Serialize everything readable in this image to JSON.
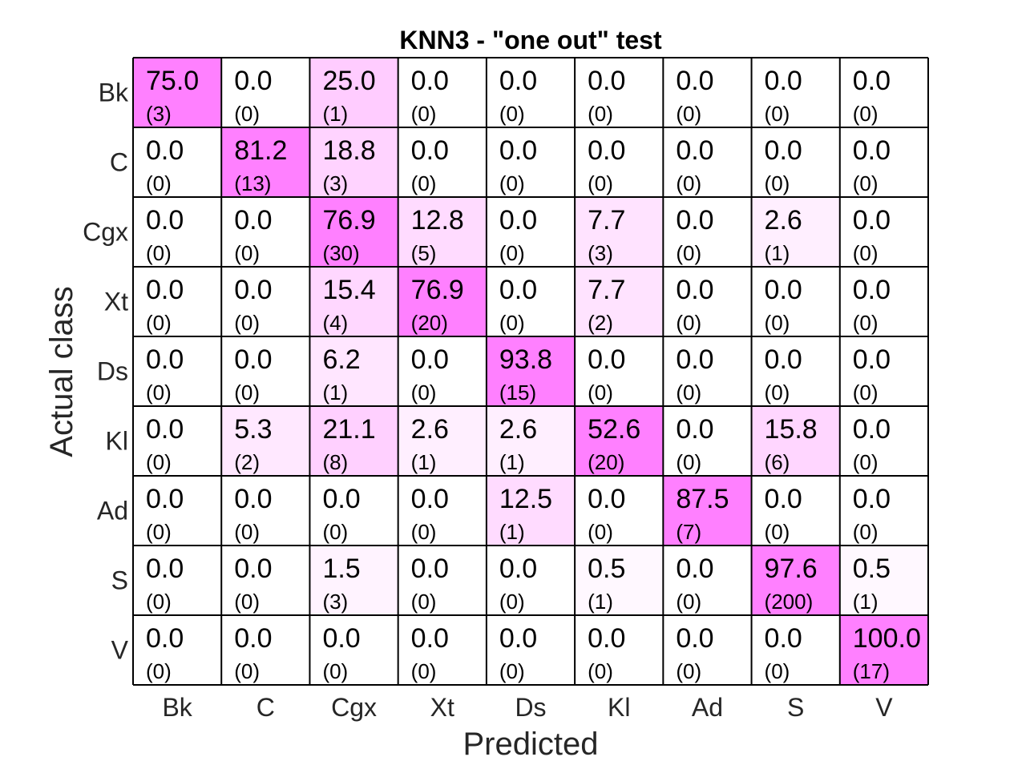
{
  "chart_data": {
    "type": "heatmap",
    "title": "KNN3 - \"one out\" test",
    "xlabel": "Predicted",
    "ylabel": "Actual class",
    "x_categories": [
      "Bk",
      "C",
      "Cgx",
      "Xt",
      "Ds",
      "Kl",
      "Ad",
      "S",
      "V"
    ],
    "y_categories": [
      "Bk",
      "C",
      "Cgx",
      "Xt",
      "Ds",
      "Kl",
      "Ad",
      "S",
      "V"
    ],
    "values": [
      [
        75.0,
        0.0,
        25.0,
        0.0,
        0.0,
        0.0,
        0.0,
        0.0,
        0.0
      ],
      [
        0.0,
        81.2,
        18.8,
        0.0,
        0.0,
        0.0,
        0.0,
        0.0,
        0.0
      ],
      [
        0.0,
        0.0,
        76.9,
        12.8,
        0.0,
        7.7,
        0.0,
        2.6,
        0.0
      ],
      [
        0.0,
        0.0,
        15.4,
        76.9,
        0.0,
        7.7,
        0.0,
        0.0,
        0.0
      ],
      [
        0.0,
        0.0,
        6.2,
        0.0,
        93.8,
        0.0,
        0.0,
        0.0,
        0.0
      ],
      [
        0.0,
        5.3,
        21.1,
        2.6,
        2.6,
        52.6,
        0.0,
        15.8,
        0.0
      ],
      [
        0.0,
        0.0,
        0.0,
        0.0,
        12.5,
        0.0,
        87.5,
        0.0,
        0.0
      ],
      [
        0.0,
        0.0,
        1.5,
        0.0,
        0.0,
        0.5,
        0.0,
        97.6,
        0.5
      ],
      [
        0.0,
        0.0,
        0.0,
        0.0,
        0.0,
        0.0,
        0.0,
        0.0,
        100.0
      ]
    ],
    "counts": [
      [
        3,
        0,
        1,
        0,
        0,
        0,
        0,
        0,
        0
      ],
      [
        0,
        13,
        3,
        0,
        0,
        0,
        0,
        0,
        0
      ],
      [
        0,
        0,
        30,
        5,
        0,
        3,
        0,
        1,
        0
      ],
      [
        0,
        0,
        4,
        20,
        0,
        2,
        0,
        0,
        0
      ],
      [
        0,
        0,
        1,
        0,
        15,
        0,
        0,
        0,
        0
      ],
      [
        0,
        2,
        8,
        1,
        1,
        20,
        0,
        6,
        0
      ],
      [
        0,
        0,
        0,
        0,
        1,
        0,
        7,
        0,
        0
      ],
      [
        0,
        0,
        3,
        0,
        0,
        1,
        0,
        200,
        1
      ],
      [
        0,
        0,
        0,
        0,
        0,
        0,
        0,
        0,
        17
      ]
    ],
    "diagonal_color": "#ff80ff",
    "off_diagonal_max_color": "#ffccff",
    "low_color": "#ffffff",
    "grid_color": "#000000"
  }
}
